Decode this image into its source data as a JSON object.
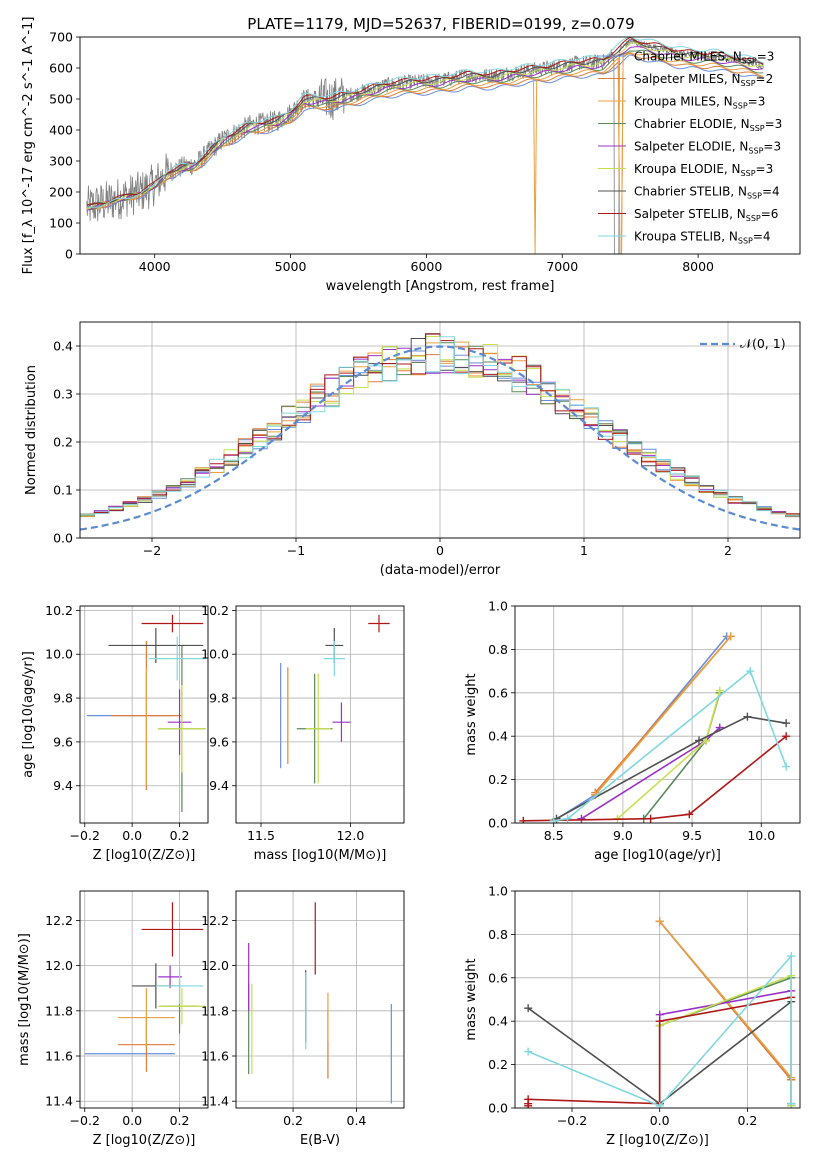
{
  "figure_title": "PLATE=1179, MJD=52637, FIBERID=0199, z=0.079",
  "models": [
    {
      "name": "Chabrier MILES",
      "nssp": "3",
      "color": "#6a8fd8"
    },
    {
      "name": "Salpeter MILES",
      "nssp": "2",
      "color": "#e07b39"
    },
    {
      "name": "Kroupa MILES",
      "nssp": "3",
      "color": "#e8a040"
    },
    {
      "name": "Chabrier ELODIE",
      "nssp": "3",
      "color": "#5a8a5a"
    },
    {
      "name": "Salpeter ELODIE",
      "nssp": "3",
      "color": "#9b30c8"
    },
    {
      "name": "Kroupa ELODIE",
      "nssp": "3",
      "color": "#c8e050"
    },
    {
      "name": "Chabrier STELIB",
      "nssp": "4",
      "color": "#505050"
    },
    {
      "name": "Salpeter STELIB",
      "nssp": "6",
      "color": "#b01818"
    },
    {
      "name": "Kroupa STELIB",
      "nssp": "4",
      "color": "#80d8e0"
    }
  ],
  "chart_data": [
    {
      "id": "spectrum",
      "type": "line",
      "xlabel": "wavelength [Angstrom, rest frame]",
      "ylabel": "Flux [f_λ 10^-17 erg cm^-2 s^-1 A^-1]",
      "xlim": [
        3450,
        8750
      ],
      "ylim": [
        0,
        700
      ],
      "xticks": [
        4000,
        5000,
        6000,
        7000,
        8000
      ],
      "yticks": [
        0,
        100,
        200,
        300,
        400,
        500,
        600,
        700
      ],
      "continuum_x": [
        3500,
        3700,
        3900,
        4000,
        4100,
        4200,
        4300,
        4500,
        4700,
        4900,
        5000,
        5100,
        5300,
        5500,
        5700,
        5900,
        6100,
        6300,
        6500,
        6700,
        6900,
        7100,
        7300,
        7500,
        7700,
        7900,
        8100,
        8300,
        8500
      ],
      "continuum_y": [
        150,
        175,
        200,
        225,
        265,
        280,
        290,
        370,
        415,
        430,
        455,
        500,
        500,
        520,
        545,
        555,
        560,
        575,
        575,
        590,
        600,
        615,
        620,
        685,
        665,
        645,
        640,
        625,
        605
      ],
      "observed_color": "#808080"
    },
    {
      "id": "residuals",
      "type": "step",
      "xlabel": "(data-model)/error",
      "ylabel": "Normed distribution",
      "xlim": [
        -2.5,
        2.5
      ],
      "ylim": [
        0,
        0.45
      ],
      "xticks": [
        -2,
        -1,
        0,
        1,
        2
      ],
      "yticks": [
        0.0,
        0.1,
        0.2,
        0.3,
        0.4
      ],
      "legend": "𝒩(0, 1)",
      "bins": [
        -2.5,
        2.5,
        50
      ]
    },
    {
      "id": "age_vs_Z",
      "type": "errorbar",
      "xlabel": "Z [log10(Z/Z⊙)]",
      "ylabel": "age [log10(age/yr)]",
      "xlim": [
        -0.22,
        0.32
      ],
      "ylim": [
        9.23,
        10.22
      ],
      "xticks": [
        -0.2,
        0.0,
        0.2
      ],
      "yticks": [
        9.4,
        9.6,
        9.8,
        10.0,
        10.2
      ],
      "points": [
        {
          "x": -0.01,
          "y": 9.72,
          "xerr": 0.18,
          "yerr": 0.0
        },
        {
          "x": 0.06,
          "y": 9.72,
          "xerr": 0.15,
          "yerr": 0.34
        },
        {
          "x": 0.06,
          "y": 9.67,
          "xerr": 0.0,
          "yerr": 0.27
        },
        {
          "x": 0.21,
          "y": 9.66,
          "xerr": 0.1,
          "yerr": 0.38
        },
        {
          "x": 0.2,
          "y": 9.69,
          "xerr": 0.05,
          "yerr": 0.15
        },
        {
          "x": 0.21,
          "y": 9.66,
          "xerr": 0.1,
          "yerr": 0.2
        },
        {
          "x": 0.1,
          "y": 10.04,
          "xerr": 0.2,
          "yerr": 0.08
        },
        {
          "x": 0.17,
          "y": 10.14,
          "xerr": 0.13,
          "yerr": 0.04
        },
        {
          "x": 0.19,
          "y": 9.98,
          "xerr": 0.12,
          "yerr": 0.1
        }
      ]
    },
    {
      "id": "age_vs_mass",
      "type": "errorbar",
      "xlabel": "mass [log10(M/M⊙)]",
      "ylabel": "",
      "xlim": [
        11.36,
        12.3
      ],
      "ylim": [
        9.23,
        10.22
      ],
      "xticks": [
        11.5,
        12.0
      ],
      "yticks": [
        9.4,
        9.6,
        9.8,
        10.0,
        10.2
      ],
      "points": [
        {
          "x": 11.61,
          "y": 9.72,
          "xerr": 0.0,
          "yerr": 0.24
        },
        {
          "x": 11.65,
          "y": 9.72,
          "xerr": 0.0,
          "yerr": 0.22
        },
        {
          "x": 11.65,
          "y": 9.72,
          "xerr": 0.0,
          "yerr": 0.21
        },
        {
          "x": 11.8,
          "y": 9.66,
          "xerr": 0.1,
          "yerr": 0.25
        },
        {
          "x": 11.95,
          "y": 9.69,
          "xerr": 0.05,
          "yerr": 0.09
        },
        {
          "x": 11.82,
          "y": 9.66,
          "xerr": 0.07,
          "yerr": 0.25
        },
        {
          "x": 11.91,
          "y": 10.04,
          "xerr": 0.05,
          "yerr": 0.08
        },
        {
          "x": 12.16,
          "y": 10.14,
          "xerr": 0.06,
          "yerr": 0.04
        },
        {
          "x": 11.91,
          "y": 9.98,
          "xerr": 0.06,
          "yerr": 0.08
        }
      ]
    },
    {
      "id": "weight_vs_age",
      "type": "line",
      "xlabel": "age [log10(age/yr)]",
      "ylabel": "mass weight",
      "xlim": [
        8.22,
        10.28
      ],
      "ylim": [
        0.0,
        1.0
      ],
      "xticks": [
        8.5,
        9.0,
        9.5,
        10.0
      ],
      "yticks": [
        0.0,
        0.2,
        0.4,
        0.6,
        0.8,
        1.0
      ],
      "series": [
        {
          "model": 0,
          "x": [
            8.5,
            8.8,
            9.75
          ],
          "y": [
            0.01,
            0.13,
            0.86
          ]
        },
        {
          "model": 1,
          "x": [
            8.8,
            9.78
          ],
          "y": [
            0.14,
            0.86
          ]
        },
        {
          "model": 2,
          "x": [
            8.8,
            9.78
          ],
          "y": [
            0.13,
            0.86
          ]
        },
        {
          "model": 3,
          "x": [
            9.15,
            9.6,
            9.7
          ],
          "y": [
            0.02,
            0.38,
            0.6
          ]
        },
        {
          "model": 4,
          "x": [
            8.7,
            9.6,
            9.7
          ],
          "y": [
            0.02,
            0.38,
            0.44
          ]
        },
        {
          "model": 5,
          "x": [
            8.96,
            9.6,
            9.7
          ],
          "y": [
            0.02,
            0.38,
            0.61
          ]
        },
        {
          "model": 6,
          "x": [
            8.52,
            9.55,
            9.9,
            10.18
          ],
          "y": [
            0.02,
            0.38,
            0.49,
            0.46
          ]
        },
        {
          "model": 7,
          "x": [
            8.28,
            9.2,
            9.48,
            10.18
          ],
          "y": [
            0.01,
            0.02,
            0.04,
            0.4
          ]
        },
        {
          "model": 8,
          "x": [
            8.5,
            8.6,
            9.92,
            10.18
          ],
          "y": [
            0.01,
            0.02,
            0.7,
            0.26
          ]
        }
      ]
    },
    {
      "id": "mass_vs_Z",
      "type": "errorbar",
      "xlabel": "Z [log10(Z/Z⊙)]",
      "ylabel": "mass [log10(M/M⊙)]",
      "xlim": [
        -0.22,
        0.32
      ],
      "ylim": [
        11.37,
        12.33
      ],
      "xticks": [
        -0.2,
        0.0,
        0.2
      ],
      "yticks": [
        11.4,
        11.6,
        11.8,
        12.0,
        12.2
      ],
      "points": [
        {
          "x": -0.01,
          "y": 11.61,
          "xerr": 0.19,
          "yerr": 0.0
        },
        {
          "x": 0.06,
          "y": 11.65,
          "xerr": 0.12,
          "yerr": 0.12
        },
        {
          "x": 0.06,
          "y": 11.77,
          "xerr": 0.12,
          "yerr": 0.13
        },
        {
          "x": 0.2,
          "y": 11.82,
          "xerr": 0.08,
          "yerr": 0.12
        },
        {
          "x": 0.16,
          "y": 11.95,
          "xerr": 0.05,
          "yerr": 0.05
        },
        {
          "x": 0.21,
          "y": 11.82,
          "xerr": 0.1,
          "yerr": 0.08
        },
        {
          "x": 0.1,
          "y": 11.91,
          "xerr": 0.1,
          "yerr": 0.1
        },
        {
          "x": 0.17,
          "y": 12.16,
          "xerr": 0.13,
          "yerr": 0.12
        },
        {
          "x": 0.2,
          "y": 11.91,
          "xerr": 0.1,
          "yerr": 0.08
        }
      ]
    },
    {
      "id": "mass_vs_EBV",
      "type": "errorbar",
      "xlabel": "E(B-V)",
      "ylabel": "",
      "xlim": [
        0.02,
        0.55
      ],
      "ylim": [
        11.37,
        12.33
      ],
      "xticks": [
        0.2,
        0.4
      ],
      "yticks": [
        11.4,
        11.6,
        11.8,
        12.0,
        12.2
      ],
      "points": [
        {
          "x": 0.51,
          "y": 11.61,
          "xerr": 0.0,
          "yerr": 0.22
        },
        {
          "x": 0.31,
          "y": 11.65,
          "xerr": 0.0,
          "yerr": 0.15
        },
        {
          "x": 0.31,
          "y": 11.77,
          "xerr": 0.0,
          "yerr": 0.11
        },
        {
          "x": 0.06,
          "y": 11.72,
          "xerr": 0.0,
          "yerr": 0.2
        },
        {
          "x": 0.06,
          "y": 11.95,
          "xerr": 0.0,
          "yerr": 0.15
        },
        {
          "x": 0.07,
          "y": 11.72,
          "xerr": 0.0,
          "yerr": 0.2
        },
        {
          "x": 0.24,
          "y": 11.82,
          "xerr": 0.0,
          "yerr": 0.16
        },
        {
          "x": 0.27,
          "y": 12.12,
          "xerr": 0.0,
          "yerr": 0.16
        },
        {
          "x": 0.24,
          "y": 11.8,
          "xerr": 0.0,
          "yerr": 0.17
        }
      ]
    },
    {
      "id": "weight_vs_Z",
      "type": "line",
      "xlabel": "Z [log10(Z/Z⊙)]",
      "ylabel": "mass weight",
      "xlim": [
        -0.33,
        0.32
      ],
      "ylim": [
        0.0,
        1.0
      ],
      "xticks": [
        -0.2,
        0.0,
        0.2
      ],
      "yticks": [
        0.0,
        0.2,
        0.4,
        0.6,
        0.8,
        1.0
      ],
      "series": [
        {
          "model": 0,
          "x": [
            0.0,
            0.3,
            0.3
          ],
          "y": [
            0.86,
            0.13,
            0.01
          ]
        },
        {
          "model": 1,
          "x": [
            0.0,
            0.3
          ],
          "y": [
            0.86,
            0.13
          ]
        },
        {
          "model": 2,
          "x": [
            0.0,
            0.3
          ],
          "y": [
            0.86,
            0.14
          ]
        },
        {
          "model": 3,
          "x": [
            0.0,
            0.0,
            0.3,
            0.3
          ],
          "y": [
            0.02,
            0.38,
            0.6,
            0.02
          ]
        },
        {
          "model": 4,
          "x": [
            0.0,
            0.0,
            0.3
          ],
          "y": [
            0.02,
            0.43,
            0.54
          ]
        },
        {
          "model": 5,
          "x": [
            0.0,
            0.0,
            0.3,
            0.3
          ],
          "y": [
            0.02,
            0.38,
            0.61,
            0.01
          ]
        },
        {
          "model": 6,
          "x": [
            -0.3,
            0.0,
            0.3,
            0.3
          ],
          "y": [
            0.46,
            0.02,
            0.49,
            0.02
          ]
        },
        {
          "model": 7,
          "x": [
            -0.3,
            -0.3,
            -0.3,
            0.0,
            0.0,
            0.3
          ],
          "y": [
            0.01,
            0.02,
            0.04,
            0.02,
            0.4,
            0.51
          ]
        },
        {
          "model": 8,
          "x": [
            -0.3,
            0.0,
            0.3,
            0.3
          ],
          "y": [
            0.26,
            0.01,
            0.7,
            0.02
          ]
        }
      ]
    }
  ]
}
